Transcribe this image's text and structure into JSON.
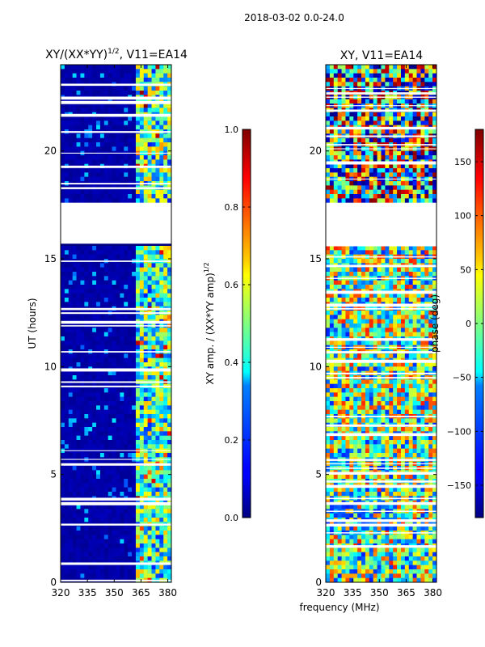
{
  "suptitle": "2018-03-02 0.0-24.0",
  "xlabel_shared": "frequency (MHz)",
  "chart_data": [
    {
      "type": "heatmap",
      "title_main": "XY/(XX*YY)",
      "title_exp": "1/2",
      "title_suffix": ", V11=EA14",
      "xlim": [
        320,
        382
      ],
      "ylim": [
        0,
        24
      ],
      "xticks": [
        320,
        335,
        350,
        365,
        380
      ],
      "yticks": [
        0,
        5,
        10,
        15,
        20
      ],
      "ylabel": "UT (hours)",
      "colorbar": {
        "label_main": "XY amp. / (XX*YY amp)",
        "label_exp": "1/2",
        "range": [
          0.0,
          1.0
        ],
        "ticks": [
          "0.0",
          "0.2",
          "0.4",
          "0.6",
          "0.8",
          "1.0"
        ],
        "colormap": "jet"
      },
      "gaps_hours": [
        [
          17.6,
          15.7
        ]
      ]
    },
    {
      "type": "heatmap",
      "title": "XY, V11=EA14",
      "xlim": [
        320,
        382
      ],
      "ylim": [
        0,
        24
      ],
      "xticks": [
        320,
        335,
        350,
        365,
        380
      ],
      "yticks": [
        0,
        5,
        10,
        15,
        20
      ],
      "colorbar": {
        "label": "phase (deg)",
        "range": [
          -180,
          180
        ],
        "ticks": [
          "150",
          "100",
          "50",
          "0",
          "−50",
          "−100",
          "−150"
        ],
        "colormap": "jet"
      },
      "gaps_hours": [
        [
          17.6,
          15.7
        ]
      ]
    }
  ]
}
